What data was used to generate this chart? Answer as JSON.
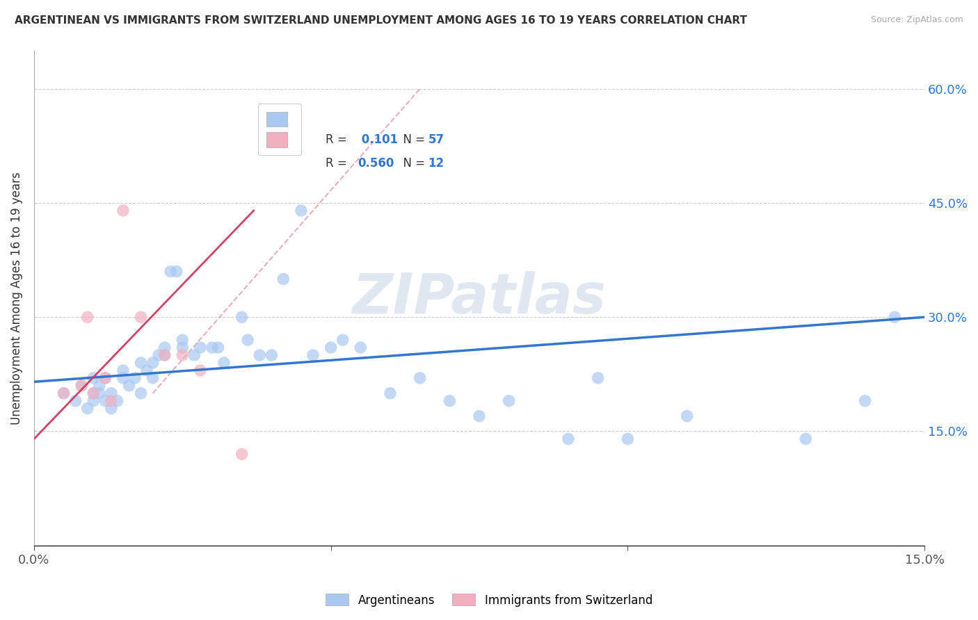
{
  "title": "ARGENTINEAN VS IMMIGRANTS FROM SWITZERLAND UNEMPLOYMENT AMONG AGES 16 TO 19 YEARS CORRELATION CHART",
  "source": "Source: ZipAtlas.com",
  "ylabel": "Unemployment Among Ages 16 to 19 years",
  "xlim": [
    0.0,
    0.15
  ],
  "ylim": [
    0.0,
    0.65
  ],
  "blue_R": "0.101",
  "blue_N": "57",
  "pink_R": "0.560",
  "pink_N": "12",
  "blue_color": "#aac8f0",
  "pink_color": "#f0b0c0",
  "blue_line_color": "#3377cc",
  "pink_line_color": "#cc4466",
  "trendline_dash_color": "#e0a0b0",
  "watermark_color": "#ccd8e8",
  "blue_scatter_x": [
    0.005,
    0.007,
    0.008,
    0.009,
    0.01,
    0.01,
    0.01,
    0.011,
    0.011,
    0.012,
    0.012,
    0.013,
    0.013,
    0.014,
    0.015,
    0.015,
    0.016,
    0.017,
    0.018,
    0.018,
    0.019,
    0.02,
    0.02,
    0.021,
    0.022,
    0.022,
    0.023,
    0.024,
    0.025,
    0.025,
    0.027,
    0.028,
    0.03,
    0.031,
    0.032,
    0.035,
    0.036,
    0.038,
    0.04,
    0.042,
    0.045,
    0.047,
    0.05,
    0.052,
    0.055,
    0.06,
    0.065,
    0.07,
    0.075,
    0.08,
    0.09,
    0.095,
    0.1,
    0.11,
    0.13,
    0.14,
    0.145
  ],
  "blue_scatter_y": [
    0.2,
    0.19,
    0.21,
    0.18,
    0.19,
    0.2,
    0.22,
    0.2,
    0.21,
    0.19,
    0.22,
    0.18,
    0.2,
    0.19,
    0.22,
    0.23,
    0.21,
    0.22,
    0.24,
    0.2,
    0.23,
    0.24,
    0.22,
    0.25,
    0.26,
    0.25,
    0.36,
    0.36,
    0.27,
    0.26,
    0.25,
    0.26,
    0.26,
    0.26,
    0.24,
    0.3,
    0.27,
    0.25,
    0.25,
    0.35,
    0.44,
    0.25,
    0.26,
    0.27,
    0.26,
    0.2,
    0.22,
    0.19,
    0.17,
    0.19,
    0.14,
    0.22,
    0.14,
    0.17,
    0.14,
    0.19,
    0.3
  ],
  "pink_scatter_x": [
    0.005,
    0.008,
    0.009,
    0.01,
    0.012,
    0.013,
    0.015,
    0.018,
    0.022,
    0.025,
    0.028,
    0.035
  ],
  "pink_scatter_y": [
    0.2,
    0.21,
    0.3,
    0.2,
    0.22,
    0.19,
    0.44,
    0.3,
    0.25,
    0.25,
    0.23,
    0.12
  ],
  "blue_line_x": [
    0.0,
    0.15
  ],
  "blue_line_y": [
    0.215,
    0.3
  ],
  "pink_line_x": [
    0.0,
    0.037
  ],
  "pink_line_y": [
    0.14,
    0.44
  ],
  "diag_line_x": [
    0.02,
    0.065
  ],
  "diag_line_y": [
    0.2,
    0.6
  ],
  "yticks": [
    0.15,
    0.3,
    0.45,
    0.6
  ],
  "ytick_labels": [
    "15.0%",
    "30.0%",
    "45.0%",
    "60.0%"
  ],
  "xticks": [
    0.0,
    0.05,
    0.1,
    0.15
  ],
  "xtick_labels": [
    "0.0%",
    "",
    "",
    "15.0%"
  ]
}
